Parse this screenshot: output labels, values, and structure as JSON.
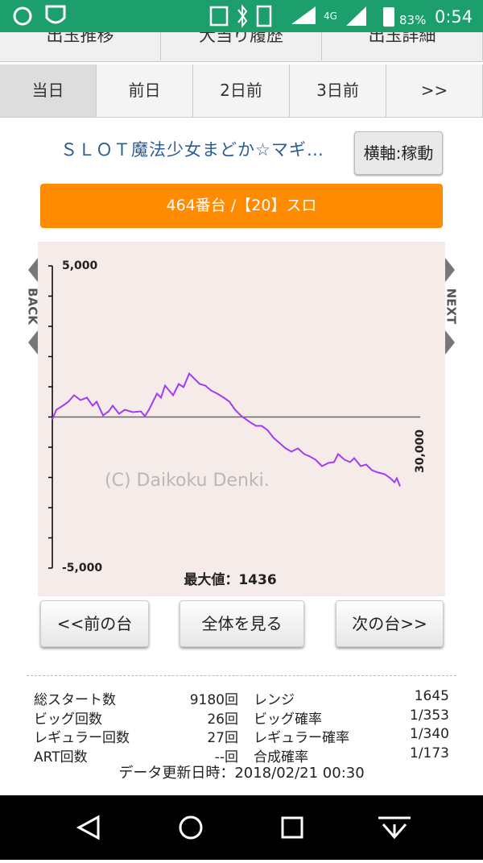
{
  "status_bar": {
    "network": "4G",
    "battery": "83%",
    "time": "0:54"
  },
  "top_tabs": [
    "出玉推移",
    "大当り履歴",
    "出玉詳細"
  ],
  "day_tabs": [
    "当日",
    "前日",
    "2日前",
    "3日前",
    ">>"
  ],
  "machine_title": "ＳＬＯＴ魔法少女まどか☆マギ…",
  "axis_button": "横軸:稼動",
  "unit_label": "464番台 /【20】スロ",
  "chart_data": {
    "type": "line",
    "color": "#a33cf2",
    "x": [
      0,
      328,
      853,
      1313,
      1773,
      2298,
      2823,
      3282,
      3611,
      4136,
      4595,
      4923,
      5449,
      5908,
      6565,
      7221,
      7549,
      7877,
      8206,
      8534,
      8862,
      9190,
      9519,
      9847,
      10306,
      10700,
      11160,
      11488,
      12013,
      12473,
      12932,
      13457,
      13982,
      14442,
      14902,
      15427,
      16083,
      16608,
      17068,
      17527,
      18053,
      18578,
      19037,
      19497,
      20022,
      20547,
      21007,
      21466,
      21991,
      22516,
      22976,
      23304,
      23829,
      24289,
      24617,
      25142,
      25602,
      26061,
      26586,
      27112,
      27571,
      27899,
      28096,
      28359
    ],
    "values": [
      -80,
      240,
      373,
      507,
      720,
      560,
      640,
      373,
      507,
      53,
      187,
      373,
      107,
      240,
      160,
      187,
      27,
      240,
      507,
      773,
      640,
      1040,
      880,
      720,
      1093,
      987,
      1436,
      1307,
      1093,
      1040,
      880,
      773,
      640,
      507,
      240,
      27,
      -160,
      -293,
      -293,
      -427,
      -693,
      -880,
      -1040,
      -1147,
      -1040,
      -1227,
      -1307,
      -1413,
      -1627,
      -1520,
      -1493,
      -1227,
      -1413,
      -1493,
      -1360,
      -1627,
      -1573,
      -1760,
      -1840,
      -1893,
      -2027,
      -2160,
      -2027,
      -2293
    ],
    "xlim": [
      0,
      30000
    ],
    "xticks": [
      {
        "value": 30000,
        "label": "30,000"
      }
    ],
    "ylim": [
      -5000,
      5000
    ],
    "yticks": [
      {
        "value": -5000,
        "label": "-5,000"
      },
      {
        "value": 5000,
        "label": "5,000"
      }
    ],
    "minor_yticks": [
      -4000,
      -3000,
      -2000,
      -1000,
      0,
      1000,
      2000,
      3000,
      4000
    ],
    "baseline": 0,
    "watermark": "(C) Daikoku Denki.",
    "annotation": "最大値：1436",
    "back_label": "BACK",
    "next_label": "NEXT"
  },
  "buttons": [
    "<<前の台",
    "全体を見る",
    "次の台>>"
  ],
  "stats": {
    "rows": [
      [
        "総スタート数",
        "9180回",
        "レンジ",
        "1645"
      ],
      [
        "ビッグ回数",
        "26回",
        "ビッグ確率",
        "1/353"
      ],
      [
        "レギュラー回数",
        "27回",
        "レギュラー確率",
        "1/340"
      ],
      [
        "ART回数",
        "--回",
        "合成確率",
        "1/173"
      ]
    ]
  },
  "update": "データ更新日時：2018/02/21 00:30"
}
